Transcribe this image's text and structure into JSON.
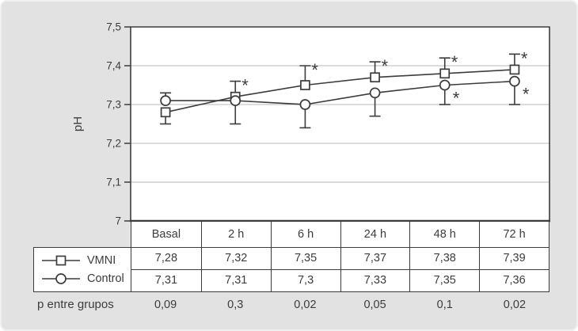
{
  "figure": {
    "background": "#e2e2e2",
    "plot_background": "#ffffff",
    "line_color": "#3c3c3c",
    "grid_color": "#b8b8b8",
    "text_color": "#3c3c3c",
    "significance_symbol": "*"
  },
  "chart_data": {
    "type": "line",
    "title": "",
    "xlabel": "",
    "ylabel": "pH",
    "ylim": [
      7.0,
      7.5
    ],
    "grid": true,
    "legend_position": "bottom-left",
    "categories": [
      "Basal",
      "2 h",
      "6 h",
      "24 h",
      "48 h",
      "72 h"
    ],
    "y_ticks": [
      {
        "label": "7,5",
        "value": 7.5
      },
      {
        "label": "7,4",
        "value": 7.4
      },
      {
        "label": "7,3",
        "value": 7.3
      },
      {
        "label": "7,2",
        "value": 7.2
      },
      {
        "label": "7,1",
        "value": 7.1
      },
      {
        "label": "7",
        "value": 7.0
      }
    ],
    "series": [
      {
        "name": "VMNI",
        "marker": "square",
        "values": [
          7.28,
          7.32,
          7.35,
          7.37,
          7.38,
          7.39
        ],
        "err_up": [
          null,
          0.04,
          0.05,
          0.04,
          0.04,
          0.04
        ],
        "err_down": [
          0.03,
          null,
          null,
          null,
          null,
          null
        ],
        "significance": [
          false,
          true,
          true,
          true,
          true,
          true
        ]
      },
      {
        "name": "Control",
        "marker": "circle",
        "values": [
          7.31,
          7.31,
          7.3,
          7.33,
          7.35,
          7.36
        ],
        "err_up": [
          0.02,
          null,
          null,
          null,
          null,
          null
        ],
        "err_down": [
          null,
          0.06,
          0.06,
          0.06,
          0.05,
          0.06
        ],
        "significance": [
          false,
          false,
          false,
          false,
          true,
          true
        ]
      }
    ]
  },
  "table": {
    "header": [
      "Basal",
      "2 h",
      "6 h",
      "24 h",
      "48 h",
      "72 h"
    ],
    "rows": [
      {
        "label": "VMNI",
        "marker": "square",
        "values": [
          "7,28",
          "7,32",
          "7,35",
          "7,37",
          "7,38",
          "7,39"
        ]
      },
      {
        "label": "Control",
        "marker": "circle",
        "values": [
          "7,31",
          "7,31",
          "7,3",
          "7,33",
          "7,35",
          "7,36"
        ]
      }
    ],
    "p_row": {
      "label": "p entre grupos",
      "values": [
        "0,09",
        "0,3",
        "0,02",
        "0,05",
        "0,1",
        "0,02"
      ]
    }
  }
}
